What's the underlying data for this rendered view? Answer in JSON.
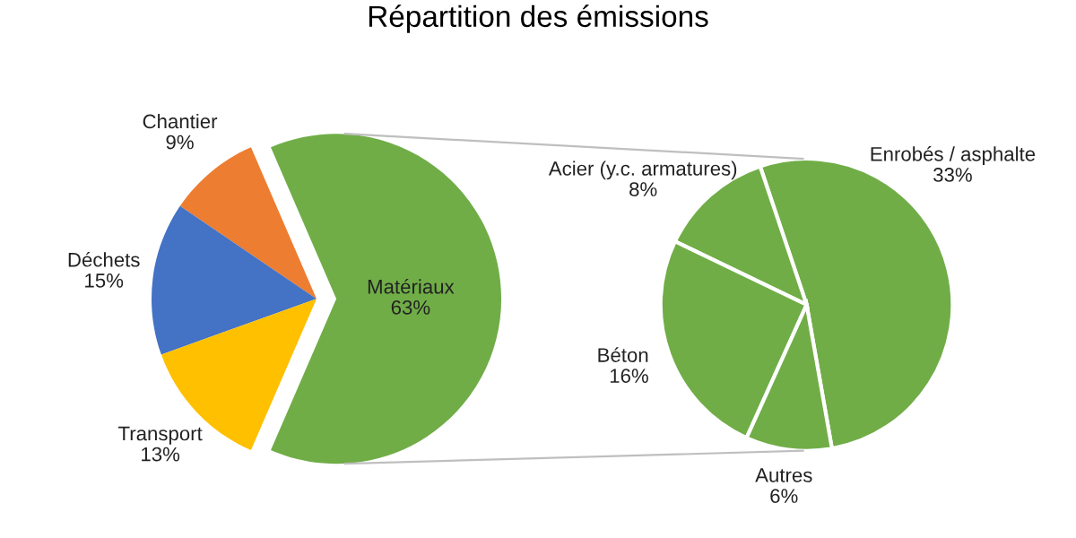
{
  "chart_data": [
    {
      "type": "pie",
      "title": "Répartition des émissions",
      "categories": [
        "Matériaux",
        "Chantier",
        "Déchets",
        "Transport"
      ],
      "values": [
        63,
        9,
        15,
        13
      ],
      "colors": [
        "#70ad47",
        "#ed7d31",
        "#4472c4",
        "#ffc000"
      ],
      "value_labels": [
        "63%",
        "9%",
        "15%",
        "13%"
      ],
      "legend": false
    },
    {
      "type": "pie",
      "categories": [
        "Enrobés / asphalte",
        "Acier (y.c. armatures)",
        "Béton",
        "Autres"
      ],
      "values": [
        33,
        8,
        16,
        6
      ],
      "colors": [
        "#70ad47",
        "#70ad47",
        "#70ad47",
        "#70ad47"
      ],
      "value_labels": [
        "33%",
        "8%",
        "16%",
        "6%"
      ],
      "legend": false
    }
  ]
}
